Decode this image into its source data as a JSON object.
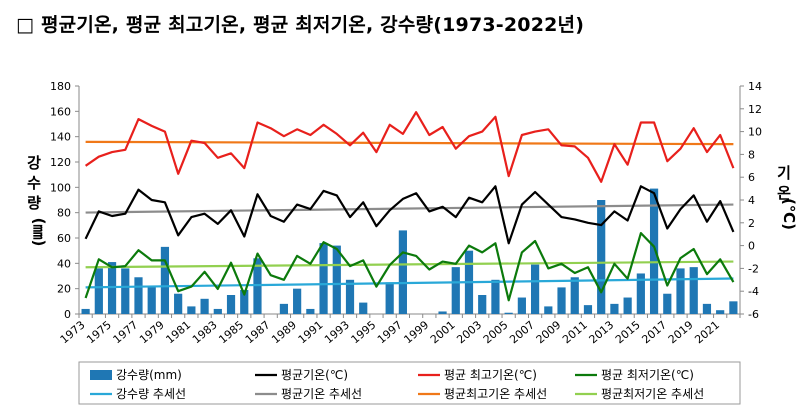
{
  "page": {
    "title": "□ 평균기온, 평균 최고기온, 평균 최저기온, 강수량(1973-2022년)"
  },
  "chart_data": {
    "type": "bar+line",
    "title": "",
    "y_left": {
      "label_chars": [
        "강",
        "수",
        "량",
        "(㎜)"
      ],
      "min": 0,
      "max": 180,
      "step": 20
    },
    "y_right": {
      "label_chars": [
        "기",
        "온",
        "(℃)"
      ],
      "min": -6,
      "max": 14,
      "step": 2
    },
    "x_tick_labels": [
      "1973",
      "1975",
      "1977",
      "1979",
      "1981",
      "1983",
      "1985",
      "1987",
      "1989",
      "1991",
      "1993",
      "1995",
      "1997",
      "1999",
      "2001",
      "2003",
      "2005",
      "2007",
      "2009",
      "2011",
      "2013",
      "2015",
      "2017",
      "2019",
      "2021"
    ],
    "years": [
      1973,
      1974,
      1975,
      1976,
      1977,
      1978,
      1979,
      1980,
      1981,
      1982,
      1983,
      1984,
      1985,
      1986,
      1987,
      1988,
      1989,
      1990,
      1991,
      1992,
      1993,
      1994,
      1995,
      1996,
      1997,
      1998,
      1999,
      2000,
      2001,
      2002,
      2003,
      2004,
      2005,
      2006,
      2007,
      2008,
      2009,
      2010,
      2011,
      2012,
      2013,
      2014,
      2015,
      2016,
      2017,
      2018,
      2019,
      2020,
      2021,
      2022
    ],
    "bar_series": {
      "name": "강수량(mm)",
      "color": "#1f77b4",
      "values": [
        4,
        36,
        41,
        36,
        29,
        22,
        53,
        16,
        6,
        12,
        4,
        15,
        19,
        44,
        0,
        8,
        20,
        4,
        56,
        54,
        27,
        9,
        0,
        25,
        66,
        0,
        0,
        2,
        37,
        50,
        15,
        27,
        1,
        13,
        39,
        6,
        21,
        29,
        7,
        90,
        8,
        13,
        32,
        99,
        16,
        36,
        37,
        8,
        3,
        10
      ]
    },
    "line_series": [
      {
        "name": "평균기온(℃)",
        "color": "#000000",
        "axis": "right",
        "values": [
          0.6,
          3.0,
          2.6,
          2.8,
          4.9,
          4.0,
          3.8,
          0.9,
          2.5,
          2.8,
          1.9,
          3.1,
          0.8,
          4.5,
          2.6,
          2.1,
          3.6,
          3.2,
          4.8,
          4.4,
          2.5,
          3.8,
          1.7,
          3.1,
          4.1,
          4.6,
          3.0,
          3.4,
          2.5,
          4.2,
          3.8,
          5.2,
          0.2,
          3.6,
          4.7,
          3.6,
          2.5,
          2.3,
          2.0,
          1.8,
          3.0,
          2.2,
          5.2,
          4.6,
          1.5,
          3.2,
          4.4,
          2.1,
          3.9,
          1.2
        ]
      },
      {
        "name": "평균 최고기온(℃)",
        "color": "#e8201c",
        "axis": "right",
        "values": [
          7.0,
          7.8,
          8.2,
          8.4,
          11.1,
          10.5,
          10.0,
          6.3,
          9.2,
          9.0,
          7.7,
          8.1,
          6.8,
          10.8,
          10.3,
          9.6,
          10.2,
          9.7,
          10.6,
          9.8,
          8.8,
          9.9,
          8.2,
          10.6,
          9.8,
          11.7,
          9.7,
          10.4,
          8.5,
          9.6,
          10.0,
          11.3,
          6.1,
          9.7,
          10.0,
          10.2,
          8.8,
          8.7,
          7.7,
          5.6,
          8.9,
          7.1,
          10.8,
          10.8,
          7.4,
          8.5,
          10.3,
          8.2,
          9.7,
          6.8
        ]
      },
      {
        "name": "평균 최저기온(℃)",
        "color": "#0c7a0c",
        "axis": "right",
        "values": [
          -4.6,
          -1.2,
          -1.9,
          -1.8,
          -0.4,
          -1.3,
          -1.3,
          -4.0,
          -3.6,
          -2.3,
          -3.8,
          -1.5,
          -4.3,
          -0.7,
          -2.6,
          -3.0,
          -0.9,
          -1.6,
          0.3,
          -0.3,
          -1.8,
          -1.3,
          -3.6,
          -1.7,
          -0.6,
          -0.9,
          -2.1,
          -1.4,
          -1.6,
          0.0,
          -0.6,
          0.2,
          -4.8,
          -0.6,
          0.4,
          -2.0,
          -1.6,
          -2.4,
          -1.9,
          -4.1,
          -1.6,
          -2.9,
          1.1,
          -0.1,
          -3.5,
          -1.1,
          -0.3,
          -2.5,
          -1.2,
          -3.2
        ]
      }
    ],
    "trend_lines": [
      {
        "name": "강수량 추세선",
        "color": "#29a8d8",
        "axis": "left",
        "start": 21,
        "end": 28
      },
      {
        "name": "평균기온 추세선",
        "color": "#8c8c8c",
        "axis": "right",
        "start": 2.9,
        "end": 3.6
      },
      {
        "name": "평균최고기온 추세선",
        "color": "#f07818",
        "axis": "right",
        "start": 9.1,
        "end": 8.9
      },
      {
        "name": "평균최저기온 추세선",
        "color": "#92d050",
        "axis": "right",
        "start": -1.9,
        "end": -1.4
      }
    ],
    "legend": {
      "placement": "bottom",
      "items": [
        "강수량(mm)",
        "평균기온(℃)",
        "평균 최고기온(℃)",
        "평균 최저기온(℃)",
        "강수량 추세선",
        "평균기온 추세선",
        "평균최고기온 추세선",
        "평균최저기온 추세선"
      ]
    },
    "grid": false
  }
}
